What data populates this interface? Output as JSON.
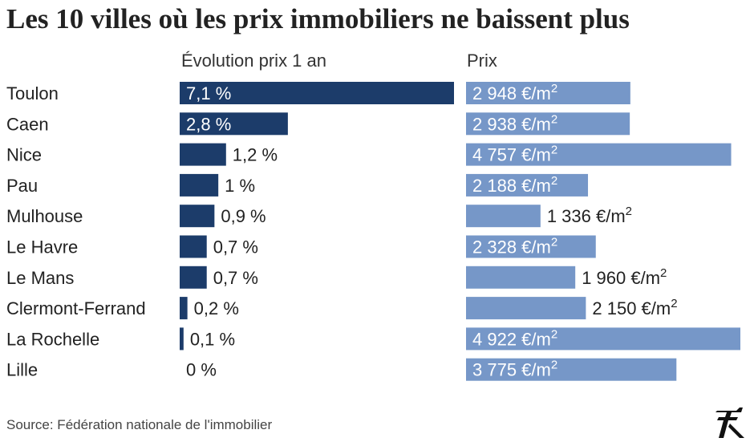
{
  "title": "Les 10 villes où les prix immobiliers ne baissent plus",
  "source": "Source: Fédération nationale de l'immobilier",
  "colors": {
    "evolution": "#1c3c6a",
    "prix": "#7697c8",
    "text": "#222222",
    "label_inside": "#ffffff"
  },
  "chart_data": {
    "type": "bar",
    "orientation": "horizontal",
    "categories": [
      "Toulon",
      "Caen",
      "Nice",
      "Pau",
      "Mulhouse",
      "Le Havre",
      "Le Mans",
      "Clermont-Ferrand",
      "La Rochelle",
      "Lille"
    ],
    "series": [
      {
        "name": "Évolution prix 1 an",
        "values": [
          7.1,
          2.8,
          1.2,
          1,
          0.9,
          0.7,
          0.7,
          0.2,
          0.1,
          0
        ],
        "labels": [
          "7,1 %",
          "2,8 %",
          "1,2 %",
          "1 %",
          "0,9 %",
          "0,7 %",
          "0,7 %",
          "0,2 %",
          "0,1 %",
          "0 %"
        ],
        "color": "#1c3c6a"
      },
      {
        "name": "Prix",
        "values": [
          2948,
          2938,
          4757,
          2188,
          1336,
          2328,
          1960,
          2150,
          4922,
          3775
        ],
        "labels": [
          "2 948 €/m",
          "2 938 €/m",
          "4 757 €/m",
          "2 188 €/m",
          "1 336 €/m",
          "2 328 €/m",
          "1 960 €/m",
          "2 150 €/m",
          "4 922 €/m",
          "3 775 €/m"
        ],
        "unit_sup": "2",
        "color": "#7697c8"
      }
    ]
  }
}
